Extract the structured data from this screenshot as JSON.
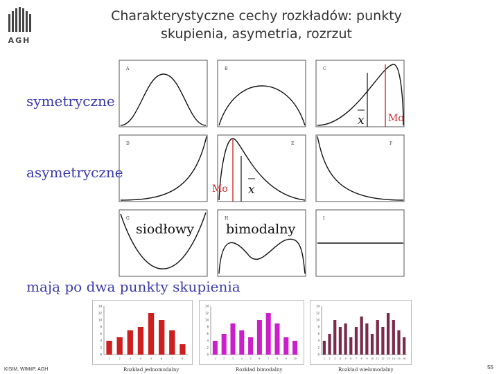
{
  "header": {
    "title_line1": "Charakterystyczne cechy rozkładów: punkty",
    "title_line2": "skupienia, asymetria, rozrzut",
    "logo_text": "AGH"
  },
  "labels": {
    "symmetric": "symetryczne",
    "asymmetric": "asymetryczne",
    "two_peaks": "mają po dwa punkty skupienia"
  },
  "panels": [
    {
      "letter": "A"
    },
    {
      "letter": "B"
    },
    {
      "letter": "C",
      "mo": "Mo",
      "xbar": "x"
    },
    {
      "letter": "D"
    },
    {
      "letter": "E",
      "mo": "Mo",
      "xbar": "x"
    },
    {
      "letter": "F"
    },
    {
      "letter": "G",
      "name": "siodłowy"
    },
    {
      "letter": "H",
      "name": "bimodalny"
    },
    {
      "letter": "I"
    }
  ],
  "bar_charts": [
    {
      "caption": "Rozkład jednomodalny",
      "color": "#cc1f1f",
      "ylim": [
        0,
        14
      ],
      "categories": [
        "1",
        "2",
        "3",
        "4",
        "5",
        "6",
        "7",
        "8"
      ],
      "values": [
        4,
        5,
        7,
        8,
        12,
        10,
        7,
        3
      ]
    },
    {
      "caption": "Rozkład bimodalny",
      "color": "#cc1fcc",
      "ylim": [
        0,
        14
      ],
      "categories": [
        "1",
        "2",
        "3",
        "4",
        "5",
        "6",
        "7",
        "8",
        "9",
        "10"
      ],
      "values": [
        4,
        6,
        9,
        7,
        5,
        10,
        12,
        9,
        5,
        4
      ]
    },
    {
      "caption": "Rozkład wielomodalny",
      "color": "#7a2a4a",
      "ylim": [
        0,
        14
      ],
      "categories": [
        "1",
        "2",
        "3",
        "4",
        "5",
        "6",
        "7",
        "8",
        "9",
        "10",
        "11",
        "12",
        "13",
        "14",
        "15",
        "16"
      ],
      "values": [
        4,
        6,
        10,
        8,
        9,
        5,
        8,
        11,
        9,
        6,
        10,
        8,
        12,
        10,
        7,
        5
      ]
    }
  ],
  "footer": {
    "left": "KISIM, WIMiIP, AGH",
    "page": "55"
  }
}
